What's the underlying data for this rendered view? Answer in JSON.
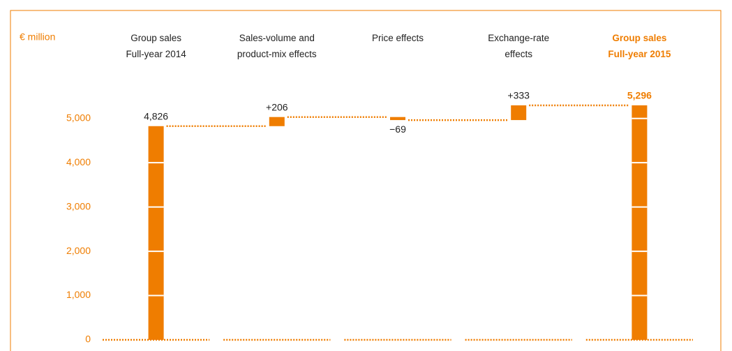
{
  "chart_data": {
    "type": "waterfall",
    "y_label": "€ million",
    "categories": [
      "Group sales\nFull-year 2014",
      "Sales-volume and\nproduct-mix effects",
      "Price effects",
      "Exchange-rate\neffects",
      "Group sales\nFull-year 2015"
    ],
    "values": [
      4826,
      206,
      -69,
      333,
      5296
    ],
    "value_labels": [
      "4,826",
      "+206",
      "−69",
      "+333",
      "5,296"
    ],
    "totals": [
      true,
      false,
      false,
      false,
      true
    ],
    "color": "#ef7d00",
    "label_colors": [
      "#222222",
      "#222222",
      "#222222",
      "#222222",
      "#ef7d00"
    ],
    "ylim": [
      0,
      5500
    ],
    "yticks": [
      0,
      {
        "value": 1000,
        "label": "1,000"
      },
      {
        "value": 2000,
        "label": "2,000"
      },
      {
        "value": 3000,
        "label": "3,000"
      },
      {
        "value": 4000,
        "label": "4,000"
      },
      {
        "value": 5000,
        "label": "5,000"
      }
    ]
  }
}
